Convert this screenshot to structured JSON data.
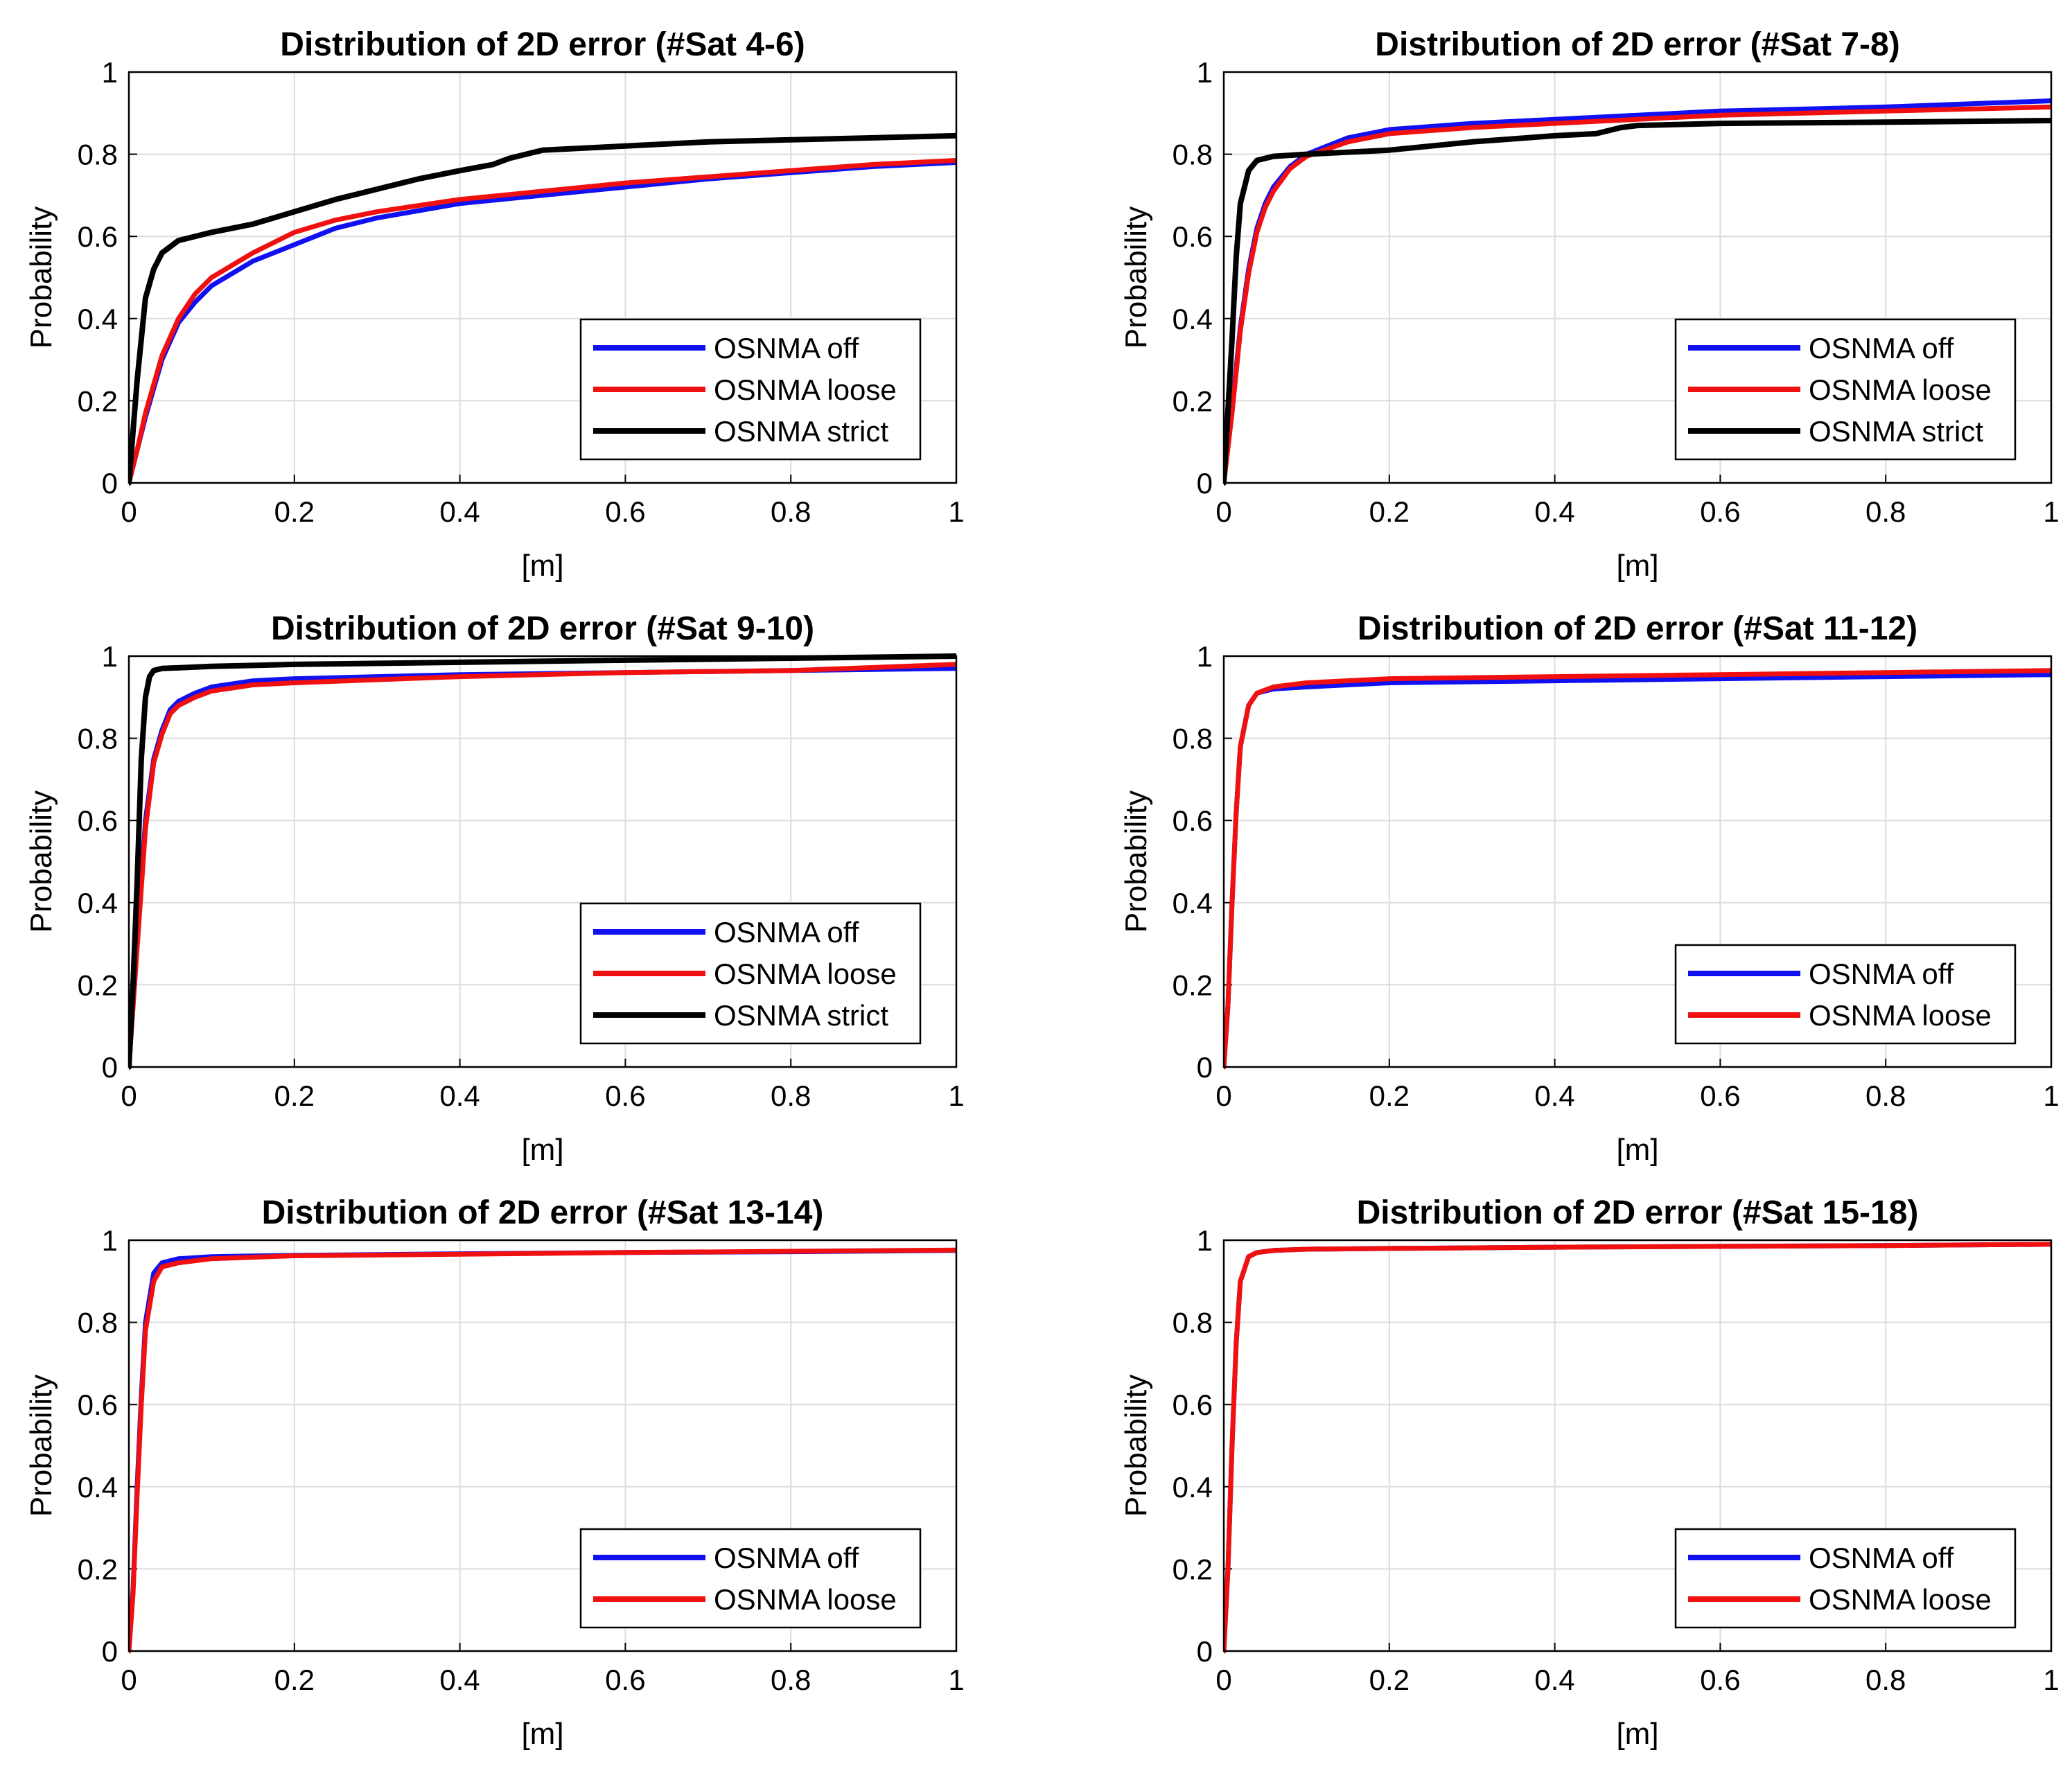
{
  "figure": {
    "description_free": true
  },
  "colors": {
    "off": "#1010f0",
    "loose": "#f01010",
    "strict": "#000000",
    "grid": "#dcdcdc"
  },
  "chart_data": [
    {
      "type": "line",
      "title": "Distribution of 2D error (#Sat 4-6)",
      "xlabel": "[m]",
      "ylabel": "Probability",
      "xlim": [
        0,
        1
      ],
      "ylim": [
        0,
        1
      ],
      "xticks": [
        "0",
        "0.2",
        "0.4",
        "0.6",
        "0.8",
        "1"
      ],
      "yticks": [
        "0",
        "0.2",
        "0.4",
        "0.6",
        "0.8",
        "1"
      ],
      "grid": true,
      "legend_position": "bottom-right",
      "series": [
        {
          "name": "OSNMA off",
          "color_key": "off",
          "x": [
            0,
            0.01,
            0.02,
            0.04,
            0.06,
            0.08,
            0.1,
            0.15,
            0.2,
            0.25,
            0.3,
            0.4,
            0.5,
            0.6,
            0.7,
            0.8,
            0.9,
            1.0
          ],
          "y": [
            0,
            0.08,
            0.16,
            0.3,
            0.39,
            0.44,
            0.48,
            0.54,
            0.58,
            0.62,
            0.645,
            0.68,
            0.7,
            0.72,
            0.74,
            0.755,
            0.77,
            0.78
          ]
        },
        {
          "name": "OSNMA loose",
          "color_key": "loose",
          "x": [
            0,
            0.01,
            0.02,
            0.04,
            0.06,
            0.08,
            0.1,
            0.15,
            0.2,
            0.25,
            0.3,
            0.4,
            0.5,
            0.6,
            0.7,
            0.8,
            0.9,
            1.0
          ],
          "y": [
            0,
            0.08,
            0.17,
            0.31,
            0.4,
            0.46,
            0.5,
            0.56,
            0.61,
            0.64,
            0.66,
            0.69,
            0.71,
            0.73,
            0.745,
            0.76,
            0.775,
            0.785
          ]
        },
        {
          "name": "OSNMA strict",
          "color_key": "strict",
          "x": [
            0,
            0.01,
            0.02,
            0.03,
            0.04,
            0.06,
            0.08,
            0.1,
            0.15,
            0.2,
            0.25,
            0.3,
            0.35,
            0.4,
            0.44,
            0.46,
            0.5,
            0.6,
            0.7,
            0.8,
            0.9,
            1.0
          ],
          "y": [
            0,
            0.25,
            0.45,
            0.52,
            0.56,
            0.59,
            0.6,
            0.61,
            0.63,
            0.66,
            0.69,
            0.715,
            0.74,
            0.76,
            0.775,
            0.79,
            0.81,
            0.82,
            0.83,
            0.835,
            0.84,
            0.845
          ]
        }
      ]
    },
    {
      "type": "line",
      "title": "Distribution of 2D error (#Sat 7-8)",
      "xlabel": "[m]",
      "ylabel": "Probability",
      "xlim": [
        0,
        1
      ],
      "ylim": [
        0,
        1
      ],
      "xticks": [
        "0",
        "0.2",
        "0.4",
        "0.6",
        "0.8",
        "1"
      ],
      "yticks": [
        "0",
        "0.2",
        "0.4",
        "0.6",
        "0.8",
        "1"
      ],
      "grid": true,
      "legend_position": "bottom-right",
      "series": [
        {
          "name": "OSNMA off",
          "color_key": "off",
          "x": [
            0,
            0.01,
            0.02,
            0.03,
            0.04,
            0.05,
            0.06,
            0.08,
            0.1,
            0.15,
            0.2,
            0.3,
            0.4,
            0.5,
            0.6,
            0.8,
            1.0
          ],
          "y": [
            0,
            0.18,
            0.38,
            0.52,
            0.62,
            0.68,
            0.72,
            0.77,
            0.8,
            0.84,
            0.86,
            0.875,
            0.885,
            0.895,
            0.905,
            0.915,
            0.93
          ]
        },
        {
          "name": "OSNMA loose",
          "color_key": "loose",
          "x": [
            0,
            0.01,
            0.02,
            0.03,
            0.04,
            0.05,
            0.06,
            0.08,
            0.1,
            0.15,
            0.2,
            0.3,
            0.4,
            0.5,
            0.6,
            0.8,
            1.0
          ],
          "y": [
            0,
            0.17,
            0.37,
            0.51,
            0.61,
            0.67,
            0.71,
            0.765,
            0.795,
            0.83,
            0.85,
            0.865,
            0.875,
            0.885,
            0.895,
            0.905,
            0.915
          ]
        },
        {
          "name": "OSNMA strict",
          "color_key": "strict",
          "x": [
            0,
            0.01,
            0.015,
            0.02,
            0.03,
            0.04,
            0.06,
            0.1,
            0.2,
            0.3,
            0.4,
            0.45,
            0.48,
            0.5,
            0.6,
            0.8,
            1.0
          ],
          "y": [
            0,
            0.35,
            0.55,
            0.68,
            0.76,
            0.785,
            0.795,
            0.8,
            0.81,
            0.83,
            0.845,
            0.85,
            0.865,
            0.87,
            0.875,
            0.878,
            0.882
          ]
        }
      ]
    },
    {
      "type": "line",
      "title": "Distribution of 2D error (#Sat 9-10)",
      "xlabel": "[m]",
      "ylabel": "Probability",
      "xlim": [
        0,
        1
      ],
      "ylim": [
        0,
        1
      ],
      "xticks": [
        "0",
        "0.2",
        "0.4",
        "0.6",
        "0.8",
        "1"
      ],
      "yticks": [
        "0",
        "0.2",
        "0.4",
        "0.6",
        "0.8",
        "1"
      ],
      "grid": true,
      "legend_position": "bottom-right",
      "series": [
        {
          "name": "OSNMA off",
          "color_key": "off",
          "x": [
            0,
            0.01,
            0.02,
            0.03,
            0.04,
            0.05,
            0.06,
            0.08,
            0.1,
            0.15,
            0.2,
            0.4,
            0.6,
            0.8,
            1.0
          ],
          "y": [
            0,
            0.3,
            0.6,
            0.75,
            0.82,
            0.87,
            0.89,
            0.91,
            0.925,
            0.94,
            0.945,
            0.955,
            0.96,
            0.965,
            0.97
          ]
        },
        {
          "name": "OSNMA loose",
          "color_key": "loose",
          "x": [
            0,
            0.01,
            0.02,
            0.03,
            0.04,
            0.05,
            0.06,
            0.08,
            0.1,
            0.15,
            0.2,
            0.4,
            0.6,
            0.8,
            1.0
          ],
          "y": [
            0,
            0.29,
            0.58,
            0.74,
            0.81,
            0.86,
            0.88,
            0.9,
            0.915,
            0.93,
            0.935,
            0.95,
            0.96,
            0.965,
            0.98
          ]
        },
        {
          "name": "OSNMA strict",
          "color_key": "strict",
          "x": [
            0,
            0.005,
            0.01,
            0.015,
            0.02,
            0.025,
            0.03,
            0.04,
            0.1,
            0.2,
            0.4,
            0.6,
            0.8,
            1.0
          ],
          "y": [
            0,
            0.2,
            0.45,
            0.75,
            0.9,
            0.95,
            0.965,
            0.97,
            0.975,
            0.98,
            0.985,
            0.99,
            0.995,
            1.0
          ]
        }
      ]
    },
    {
      "type": "line",
      "title": "Distribution of 2D error (#Sat 11-12)",
      "xlabel": "[m]",
      "ylabel": "Probability",
      "xlim": [
        0,
        1
      ],
      "ylim": [
        0,
        1
      ],
      "xticks": [
        "0",
        "0.2",
        "0.4",
        "0.6",
        "0.8",
        "1"
      ],
      "yticks": [
        "0",
        "0.2",
        "0.4",
        "0.6",
        "0.8",
        "1"
      ],
      "grid": true,
      "legend_position": "bottom-right",
      "series": [
        {
          "name": "OSNMA off",
          "color_key": "off",
          "x": [
            0,
            0.005,
            0.01,
            0.015,
            0.02,
            0.03,
            0.04,
            0.06,
            0.1,
            0.2,
            0.4,
            0.6,
            0.8,
            1.0
          ],
          "y": [
            0,
            0.15,
            0.4,
            0.62,
            0.78,
            0.88,
            0.91,
            0.92,
            0.925,
            0.935,
            0.94,
            0.945,
            0.95,
            0.955
          ]
        },
        {
          "name": "OSNMA loose",
          "color_key": "loose",
          "x": [
            0,
            0.005,
            0.01,
            0.015,
            0.02,
            0.03,
            0.04,
            0.06,
            0.1,
            0.2,
            0.4,
            0.6,
            0.8,
            1.0
          ],
          "y": [
            0,
            0.15,
            0.4,
            0.62,
            0.78,
            0.88,
            0.91,
            0.925,
            0.935,
            0.945,
            0.95,
            0.955,
            0.96,
            0.965
          ]
        }
      ]
    },
    {
      "type": "line",
      "title": "Distribution of 2D error (#Sat 13-14)",
      "xlabel": "[m]",
      "ylabel": "Probability",
      "xlim": [
        0,
        1
      ],
      "ylim": [
        0,
        1
      ],
      "xticks": [
        "0",
        "0.2",
        "0.4",
        "0.6",
        "0.8",
        "1"
      ],
      "yticks": [
        "0",
        "0.2",
        "0.4",
        "0.6",
        "0.8",
        "1"
      ],
      "grid": true,
      "legend_position": "bottom-right",
      "series": [
        {
          "name": "OSNMA off",
          "color_key": "off",
          "x": [
            0,
            0.005,
            0.01,
            0.015,
            0.02,
            0.03,
            0.04,
            0.06,
            0.1,
            0.2,
            0.4,
            0.6,
            0.8,
            1.0
          ],
          "y": [
            0,
            0.15,
            0.4,
            0.62,
            0.8,
            0.92,
            0.945,
            0.955,
            0.96,
            0.963,
            0.967,
            0.97,
            0.972,
            0.975
          ]
        },
        {
          "name": "OSNMA loose",
          "color_key": "loose",
          "x": [
            0,
            0.005,
            0.01,
            0.015,
            0.02,
            0.03,
            0.04,
            0.06,
            0.1,
            0.2,
            0.4,
            0.6,
            0.8,
            1.0
          ],
          "y": [
            0,
            0.14,
            0.38,
            0.6,
            0.78,
            0.9,
            0.935,
            0.945,
            0.955,
            0.962,
            0.966,
            0.97,
            0.973,
            0.976
          ]
        }
      ]
    },
    {
      "type": "line",
      "title": "Distribution of 2D error (#Sat 15-18)",
      "xlabel": "[m]",
      "ylabel": "Probability",
      "xlim": [
        0,
        1
      ],
      "ylim": [
        0,
        1
      ],
      "xticks": [
        "0",
        "0.2",
        "0.4",
        "0.6",
        "0.8",
        "1"
      ],
      "yticks": [
        "0",
        "0.2",
        "0.4",
        "0.6",
        "0.8",
        "1"
      ],
      "grid": true,
      "legend_position": "bottom-right",
      "series": [
        {
          "name": "OSNMA off",
          "color_key": "off",
          "x": [
            0,
            0.005,
            0.01,
            0.015,
            0.02,
            0.03,
            0.04,
            0.06,
            0.1,
            0.2,
            0.4,
            0.6,
            0.8,
            1.0
          ],
          "y": [
            0,
            0.2,
            0.5,
            0.75,
            0.9,
            0.96,
            0.97,
            0.975,
            0.978,
            0.98,
            0.983,
            0.985,
            0.987,
            0.99
          ]
        },
        {
          "name": "OSNMA loose",
          "color_key": "loose",
          "x": [
            0,
            0.005,
            0.01,
            0.015,
            0.02,
            0.03,
            0.04,
            0.06,
            0.1,
            0.2,
            0.4,
            0.6,
            0.8,
            1.0
          ],
          "y": [
            0,
            0.2,
            0.5,
            0.75,
            0.9,
            0.96,
            0.97,
            0.975,
            0.978,
            0.98,
            0.983,
            0.985,
            0.987,
            0.99
          ]
        }
      ]
    }
  ]
}
